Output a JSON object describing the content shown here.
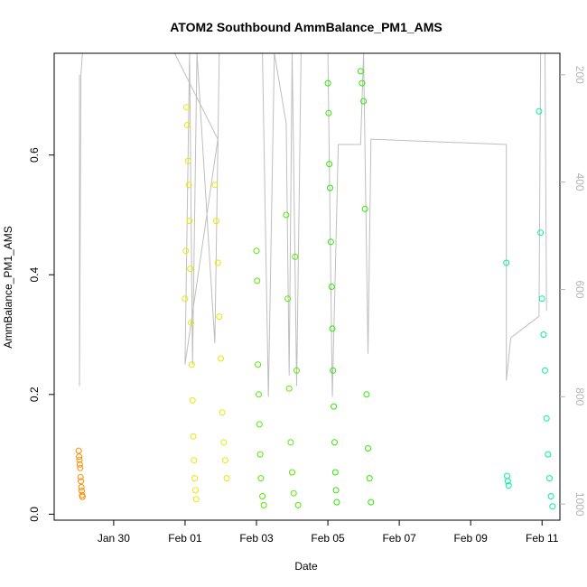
{
  "chart_data": {
    "type": "scatter",
    "title": "ATOM2 Southbound AmmBalance_PM1_AMS",
    "xlabel": "Date",
    "ylabel": "AmmBalance_PM1_AMS",
    "x_type": "date",
    "xlim": [
      "2016-01-28T08:00",
      "2016-02-11T12:00"
    ],
    "ylim": [
      -0.01,
      0.77
    ],
    "y2lim": [
      1030,
      160
    ],
    "x_ticks": [
      {
        "date": "2016-01-30T00:00",
        "label": "Jan 30"
      },
      {
        "date": "2016-02-01T00:00",
        "label": "Feb 01"
      },
      {
        "date": "2016-02-03T00:00",
        "label": "Feb 03"
      },
      {
        "date": "2016-02-05T00:00",
        "label": "Feb 05"
      },
      {
        "date": "2016-02-07T00:00",
        "label": "Feb 07"
      },
      {
        "date": "2016-02-09T00:00",
        "label": "Feb 09"
      },
      {
        "date": "2016-02-11T00:00",
        "label": "Feb 11"
      }
    ],
    "y_ticks": [
      {
        "value": 0.0,
        "label": "0.0"
      },
      {
        "value": 0.2,
        "label": "0.2"
      },
      {
        "value": 0.4,
        "label": "0.4"
      },
      {
        "value": 0.6,
        "label": "0.6"
      }
    ],
    "y2_ticks": [
      {
        "value": 200,
        "label": "200"
      },
      {
        "value": 400,
        "label": "400"
      },
      {
        "value": 600,
        "label": "600"
      },
      {
        "value": 800,
        "label": "800"
      },
      {
        "value": 1000,
        "label": "1000"
      }
    ],
    "grid": false,
    "legend": "none",
    "secondary_line": {
      "color": "#bebebe",
      "points": [
        [
          "2016-01-29T01:00",
          200
        ],
        [
          "2016-01-29T01:00",
          780
        ],
        [
          "2016-01-29T02:00",
          200
        ],
        [
          "2016-01-29T03:00",
          160
        ],
        [
          "2016-01-29T12:00",
          160
        ],
        [
          "2016-01-31T17:00",
          160
        ],
        [
          "2016-02-01T22:00",
          320
        ],
        [
          "2016-02-01T00:00",
          740
        ],
        [
          "2016-02-01T03:00",
          160
        ],
        [
          "2016-02-01T05:00",
          740
        ],
        [
          "2016-02-01T08:00",
          160
        ],
        [
          "2016-02-01T20:00",
          700
        ],
        [
          "2016-02-01T23:00",
          160
        ],
        [
          "2016-02-02T03:00",
          160
        ],
        [
          "2016-02-02T06:00",
          160
        ],
        [
          "2016-02-03T04:00",
          160
        ],
        [
          "2016-02-03T08:00",
          800
        ],
        [
          "2016-02-03T12:00",
          160
        ],
        [
          "2016-02-03T20:00",
          290
        ],
        [
          "2016-02-03T22:00",
          760
        ],
        [
          "2016-02-04T00:00",
          160
        ],
        [
          "2016-02-04T03:00",
          780
        ],
        [
          "2016-02-04T06:00",
          160
        ],
        [
          "2016-02-05T00:00",
          160
        ],
        [
          "2016-02-05T03:00",
          800
        ],
        [
          "2016-02-05T07:00",
          330
        ],
        [
          "2016-02-05T22:00",
          330
        ],
        [
          "2016-02-06T00:00",
          160
        ],
        [
          "2016-02-06T03:00",
          720
        ],
        [
          "2016-02-06T05:00",
          320
        ],
        [
          "2016-02-10T00:00",
          330
        ],
        [
          "2016-02-10T00:00",
          770
        ],
        [
          "2016-02-10T03:00",
          690
        ],
        [
          "2016-02-10T22:00",
          650
        ],
        [
          "2016-02-10T23:00",
          160
        ],
        [
          "2016-02-11T02:00",
          160
        ],
        [
          "2016-02-11T03:00",
          640
        ]
      ]
    },
    "series": [
      {
        "color": "#FF8C00",
        "points": [
          [
            "2016-01-29T00:30",
            0.106
          ],
          [
            "2016-01-29T00:45",
            0.096
          ],
          [
            "2016-01-29T01:00",
            0.091
          ],
          [
            "2016-01-29T01:15",
            0.083
          ],
          [
            "2016-01-29T01:30",
            0.077
          ],
          [
            "2016-01-29T01:45",
            0.062
          ],
          [
            "2016-01-29T02:00",
            0.055
          ],
          [
            "2016-01-29T02:15",
            0.045
          ],
          [
            "2016-01-29T02:30",
            0.039
          ],
          [
            "2016-01-29T02:45",
            0.032
          ],
          [
            "2016-01-29T03:00",
            0.029
          ]
        ]
      },
      {
        "color": "#E8E800",
        "points": [
          [
            "2016-02-01T00:00",
            0.36
          ],
          [
            "2016-02-01T00:30",
            0.44
          ],
          [
            "2016-02-01T01:00",
            0.68
          ],
          [
            "2016-02-01T01:30",
            0.65
          ],
          [
            "2016-02-01T02:00",
            0.59
          ],
          [
            "2016-02-01T02:30",
            0.55
          ],
          [
            "2016-02-01T03:00",
            0.49
          ],
          [
            "2016-02-01T03:30",
            0.41
          ],
          [
            "2016-02-01T04:00",
            0.32
          ],
          [
            "2016-02-01T04:30",
            0.25
          ],
          [
            "2016-02-01T05:00",
            0.19
          ],
          [
            "2016-02-01T05:30",
            0.13
          ],
          [
            "2016-02-01T06:00",
            0.09
          ],
          [
            "2016-02-01T06:30",
            0.06
          ],
          [
            "2016-02-01T07:00",
            0.04
          ],
          [
            "2016-02-01T07:30",
            0.025
          ],
          [
            "2016-02-01T20:00",
            0.55
          ],
          [
            "2016-02-01T21:00",
            0.49
          ],
          [
            "2016-02-01T22:00",
            0.42
          ],
          [
            "2016-02-01T23:00",
            0.33
          ],
          [
            "2016-02-02T00:00",
            0.26
          ],
          [
            "2016-02-02T01:00",
            0.17
          ],
          [
            "2016-02-02T02:00",
            0.12
          ],
          [
            "2016-02-02T03:00",
            0.09
          ],
          [
            "2016-02-02T04:00",
            0.06
          ]
        ]
      },
      {
        "color": "#55E800",
        "points": [
          [
            "2016-02-03T00:00",
            0.44
          ],
          [
            "2016-02-03T00:30",
            0.39
          ],
          [
            "2016-02-03T01:00",
            0.25
          ],
          [
            "2016-02-03T01:30",
            0.2
          ],
          [
            "2016-02-03T02:00",
            0.15
          ],
          [
            "2016-02-03T02:30",
            0.1
          ],
          [
            "2016-02-03T03:00",
            0.06
          ],
          [
            "2016-02-03T04:00",
            0.03
          ],
          [
            "2016-02-03T05:00",
            0.015
          ],
          [
            "2016-02-03T20:00",
            0.5
          ],
          [
            "2016-02-03T21:00",
            0.36
          ],
          [
            "2016-02-03T22:00",
            0.21
          ],
          [
            "2016-02-03T23:00",
            0.12
          ],
          [
            "2016-02-04T00:00",
            0.07
          ],
          [
            "2016-02-04T01:00",
            0.035
          ],
          [
            "2016-02-04T02:00",
            0.43
          ],
          [
            "2016-02-04T03:00",
            0.24
          ],
          [
            "2016-02-04T04:00",
            0.015
          ]
        ]
      },
      {
        "color": "#2EE800",
        "points": [
          [
            "2016-02-05T00:00",
            0.72
          ],
          [
            "2016-02-05T00:30",
            0.67
          ],
          [
            "2016-02-05T01:00",
            0.585
          ],
          [
            "2016-02-05T01:30",
            0.545
          ],
          [
            "2016-02-05T02:00",
            0.455
          ],
          [
            "2016-02-05T02:30",
            0.38
          ],
          [
            "2016-02-05T03:00",
            0.31
          ],
          [
            "2016-02-05T03:30",
            0.24
          ],
          [
            "2016-02-05T04:00",
            0.18
          ],
          [
            "2016-02-05T04:30",
            0.12
          ],
          [
            "2016-02-05T05:00",
            0.07
          ],
          [
            "2016-02-05T05:30",
            0.04
          ],
          [
            "2016-02-05T06:00",
            0.02
          ],
          [
            "2016-02-05T22:00",
            0.74
          ],
          [
            "2016-02-05T23:00",
            0.72
          ],
          [
            "2016-02-06T00:00",
            0.69
          ],
          [
            "2016-02-06T01:00",
            0.51
          ],
          [
            "2016-02-06T02:00",
            0.2
          ],
          [
            "2016-02-06T03:00",
            0.11
          ],
          [
            "2016-02-06T04:00",
            0.06
          ],
          [
            "2016-02-06T05:00",
            0.02
          ]
        ]
      },
      {
        "color": "#00F0A0",
        "points": [
          [
            "2016-02-10T00:00",
            0.42
          ],
          [
            "2016-02-10T00:30",
            0.064
          ],
          [
            "2016-02-10T01:00",
            0.055
          ],
          [
            "2016-02-10T01:30",
            0.048
          ],
          [
            "2016-02-10T22:00",
            0.673
          ],
          [
            "2016-02-10T23:00",
            0.47
          ],
          [
            "2016-02-11T00:00",
            0.36
          ],
          [
            "2016-02-11T01:00",
            0.3
          ],
          [
            "2016-02-11T02:00",
            0.24
          ],
          [
            "2016-02-11T03:00",
            0.16
          ],
          [
            "2016-02-11T04:00",
            0.1
          ],
          [
            "2016-02-11T05:00",
            0.06
          ],
          [
            "2016-02-11T06:00",
            0.03
          ],
          [
            "2016-02-11T07:00",
            0.013
          ]
        ]
      }
    ]
  }
}
